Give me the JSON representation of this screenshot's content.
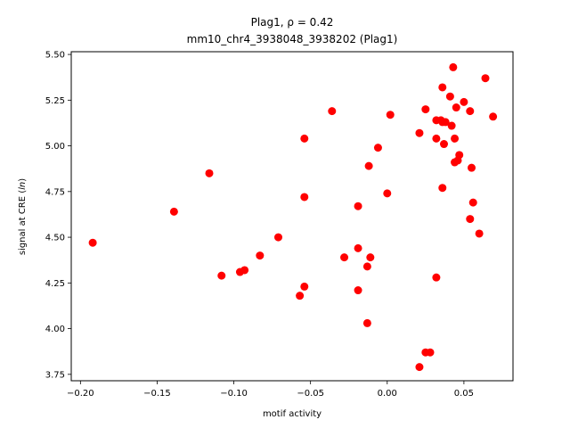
{
  "chart_data": {
    "type": "scatter",
    "title_line1": "Plag1, ρ = 0.42",
    "title_line2": "mm10_chr4_3938048_3938202 (Plag1)",
    "xlabel": "motif activity",
    "ylabel": "signal at CRE (ln)",
    "xlim": [
      -0.206,
      0.082
    ],
    "ylim": [
      3.715,
      5.515
    ],
    "xticks": [
      -0.2,
      -0.15,
      -0.1,
      -0.05,
      0.0,
      0.05
    ],
    "xtick_labels": [
      "−0.20",
      "−0.15",
      "−0.10",
      "−0.05",
      "0.00",
      "0.05"
    ],
    "yticks": [
      3.75,
      4.0,
      4.25,
      4.5,
      4.75,
      5.0,
      5.25,
      5.5
    ],
    "ytick_labels": [
      "3.75",
      "4.00",
      "4.25",
      "4.50",
      "4.75",
      "5.00",
      "5.25",
      "5.50"
    ],
    "point_color": "#ff0000",
    "points": [
      {
        "x": -0.192,
        "y": 4.47
      },
      {
        "x": -0.139,
        "y": 4.64
      },
      {
        "x": -0.116,
        "y": 4.85
      },
      {
        "x": -0.108,
        "y": 4.29
      },
      {
        "x": -0.096,
        "y": 4.31
      },
      {
        "x": -0.093,
        "y": 4.32
      },
      {
        "x": -0.083,
        "y": 4.4
      },
      {
        "x": -0.071,
        "y": 4.5
      },
      {
        "x": -0.057,
        "y": 4.18
      },
      {
        "x": -0.054,
        "y": 4.23
      },
      {
        "x": -0.054,
        "y": 4.72
      },
      {
        "x": -0.054,
        "y": 5.04
      },
      {
        "x": -0.036,
        "y": 5.19
      },
      {
        "x": -0.028,
        "y": 4.39
      },
      {
        "x": -0.019,
        "y": 4.67
      },
      {
        "x": -0.019,
        "y": 4.44
      },
      {
        "x": -0.019,
        "y": 4.21
      },
      {
        "x": -0.013,
        "y": 4.34
      },
      {
        "x": -0.013,
        "y": 4.03
      },
      {
        "x": -0.012,
        "y": 4.89
      },
      {
        "x": -0.011,
        "y": 4.39
      },
      {
        "x": -0.006,
        "y": 4.99
      },
      {
        "x": 0.0,
        "y": 4.74
      },
      {
        "x": 0.002,
        "y": 5.17
      },
      {
        "x": 0.021,
        "y": 5.07
      },
      {
        "x": 0.021,
        "y": 3.79
      },
      {
        "x": 0.025,
        "y": 5.2
      },
      {
        "x": 0.025,
        "y": 3.87
      },
      {
        "x": 0.028,
        "y": 3.87
      },
      {
        "x": 0.032,
        "y": 5.14
      },
      {
        "x": 0.032,
        "y": 5.04
      },
      {
        "x": 0.032,
        "y": 4.28
      },
      {
        "x": 0.035,
        "y": 5.14
      },
      {
        "x": 0.036,
        "y": 5.32
      },
      {
        "x": 0.036,
        "y": 5.13
      },
      {
        "x": 0.036,
        "y": 4.77
      },
      {
        "x": 0.037,
        "y": 5.01
      },
      {
        "x": 0.038,
        "y": 5.13
      },
      {
        "x": 0.041,
        "y": 5.27
      },
      {
        "x": 0.042,
        "y": 5.11
      },
      {
        "x": 0.043,
        "y": 5.43
      },
      {
        "x": 0.044,
        "y": 5.04
      },
      {
        "x": 0.044,
        "y": 4.91
      },
      {
        "x": 0.045,
        "y": 5.21
      },
      {
        "x": 0.046,
        "y": 4.92
      },
      {
        "x": 0.047,
        "y": 4.95
      },
      {
        "x": 0.05,
        "y": 5.24
      },
      {
        "x": 0.054,
        "y": 5.19
      },
      {
        "x": 0.054,
        "y": 4.6
      },
      {
        "x": 0.055,
        "y": 4.88
      },
      {
        "x": 0.056,
        "y": 4.69
      },
      {
        "x": 0.06,
        "y": 4.52
      },
      {
        "x": 0.064,
        "y": 5.37
      },
      {
        "x": 0.069,
        "y": 5.16
      }
    ]
  }
}
